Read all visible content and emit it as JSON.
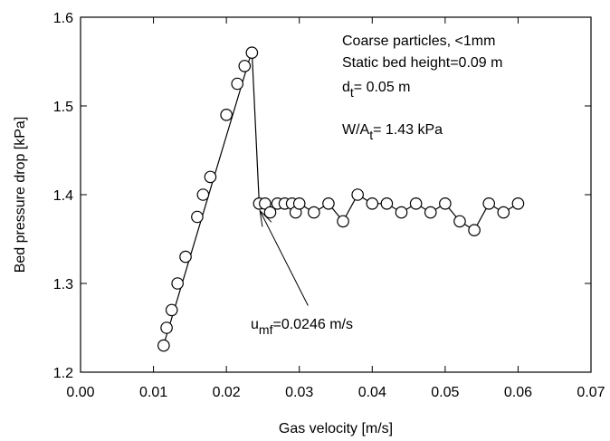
{
  "chart_data": {
    "type": "scatter",
    "xlabel": "Gas velocity [m/s]",
    "ylabel": "Bed pressure drop [kPa]",
    "xlim": [
      0.0,
      0.07
    ],
    "ylim": [
      1.2,
      1.6
    ],
    "x_ticks": [
      0.0,
      0.01,
      0.02,
      0.03,
      0.04,
      0.05,
      0.06,
      0.07
    ],
    "x_tick_labels": [
      "0.00",
      "0.01",
      "0.02",
      "0.03",
      "0.04",
      "0.05",
      "0.06",
      "0.07"
    ],
    "y_ticks": [
      1.2,
      1.3,
      1.4,
      1.5,
      1.6
    ],
    "y_tick_labels": [
      "1.2",
      "1.3",
      "1.4",
      "1.5",
      "1.6"
    ],
    "grid": false,
    "series": [
      {
        "style": "line with open circle markers",
        "x": [
          0.0114,
          0.0118,
          0.0125,
          0.0133,
          0.0144,
          0.016,
          0.0168,
          0.0178,
          0.02,
          0.0215,
          0.0225,
          0.0235,
          0.0245,
          0.0253,
          0.026,
          0.027,
          0.028,
          0.029,
          0.0295,
          0.03,
          0.032,
          0.034,
          0.036,
          0.038,
          0.04,
          0.042,
          0.044,
          0.046,
          0.048,
          0.05,
          0.052,
          0.054,
          0.056,
          0.058,
          0.06
        ],
        "y": [
          1.23,
          1.25,
          1.27,
          1.3,
          1.33,
          1.375,
          1.4,
          1.42,
          1.49,
          1.525,
          1.545,
          1.56,
          1.39,
          1.39,
          1.38,
          1.39,
          1.39,
          1.39,
          1.38,
          1.39,
          1.38,
          1.39,
          1.37,
          1.4,
          1.39,
          1.39,
          1.38,
          1.39,
          1.38,
          1.39,
          1.37,
          1.36,
          1.39,
          1.38,
          1.39
        ]
      }
    ],
    "trend_line": {
      "x": [
        0.0113,
        0.0235
      ],
      "y": [
        1.228,
        1.562
      ]
    },
    "drop_line": {
      "x": [
        0.0235,
        0.0245
      ],
      "y": [
        1.562,
        1.39
      ]
    },
    "annotations": {
      "info_lines": [
        {
          "main": "Coarse particles, <1mm",
          "sub": "",
          "rest": ""
        },
        {
          "main": "Static bed height=0.09 m",
          "sub": "",
          "rest": ""
        },
        {
          "main": "d",
          "sub": "t",
          "rest": "= 0.05 m"
        },
        {
          "main": "W/A",
          "sub": "t",
          "rest": "= 1.43 kPa"
        }
      ],
      "umf_label": {
        "main": "u",
        "sub": "mf",
        "rest": "=0.0246 m/s"
      },
      "umf_arrow": {
        "tip_x": 0.0246,
        "tip_y": 1.382,
        "tail_x": 0.0312,
        "tail_y": 1.275
      }
    }
  }
}
